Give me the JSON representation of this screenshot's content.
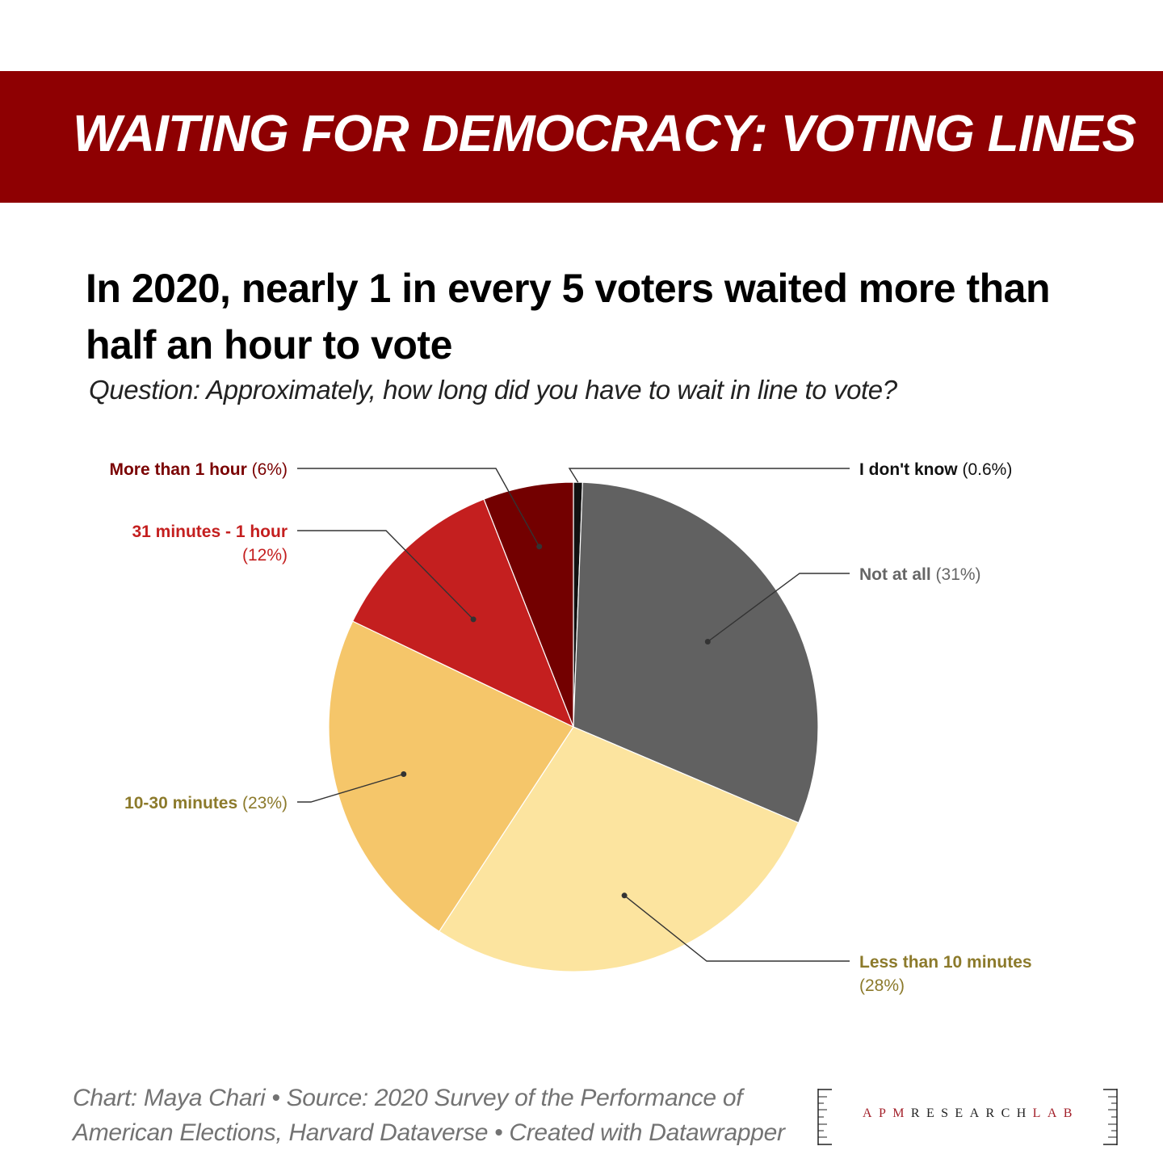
{
  "banner": {
    "title": "WAITING FOR DEMOCRACY: VOTING LINES",
    "color": "#8e0002"
  },
  "headline": "In 2020, nearly 1 in every 5 voters waited more than half an hour to vote",
  "question": "Question: Approximately, how long did you have to wait in line to vote?",
  "chart_data": {
    "type": "pie",
    "title": "In 2020, nearly 1 in every 5 voters waited more than half an hour to vote",
    "subtitle": "Question: Approximately, how long did you have to wait in line to vote?",
    "start": "12 o'clock, clockwise",
    "slices": [
      {
        "id": "idk",
        "label": "I don't know",
        "value": 0.6,
        "pct_label": "(0.6%)",
        "color": "#111111",
        "label_color": "#111111"
      },
      {
        "id": "not-at-all",
        "label": "Not at all",
        "value": 31,
        "pct_label": "(31%)",
        "color": "#616161",
        "label_color": "#666666"
      },
      {
        "id": "lt10",
        "label": "Less than 10 minutes",
        "value": 28,
        "pct_label": "(28%)",
        "color": "#fce49f",
        "label_color": "#8c7a2b"
      },
      {
        "id": "10-30",
        "label": "10-30 minutes",
        "value": 23,
        "pct_label": "(23%)",
        "color": "#f5c66a",
        "label_color": "#8c7a2b"
      },
      {
        "id": "31-60",
        "label": "31 minutes - 1 hour",
        "value": 12,
        "pct_label": "(12%)",
        "color": "#c41f1f",
        "label_color": "#c41f1f"
      },
      {
        "id": "gt60",
        "label": "More than 1 hour",
        "value": 6,
        "pct_label": "(6%)",
        "color": "#730000",
        "label_color": "#7a0000"
      }
    ]
  },
  "footer": {
    "credit": "Chart: Maya Chari • Source: 2020 Survey of the Performance of American Elections, Harvard Dataverse • Created with Datawrapper"
  },
  "logo": {
    "part1": "APM",
    "part2": "RESEARCH",
    "part3": "LAB",
    "accent_color": "#a3202a",
    "dark_color": "#222222"
  }
}
